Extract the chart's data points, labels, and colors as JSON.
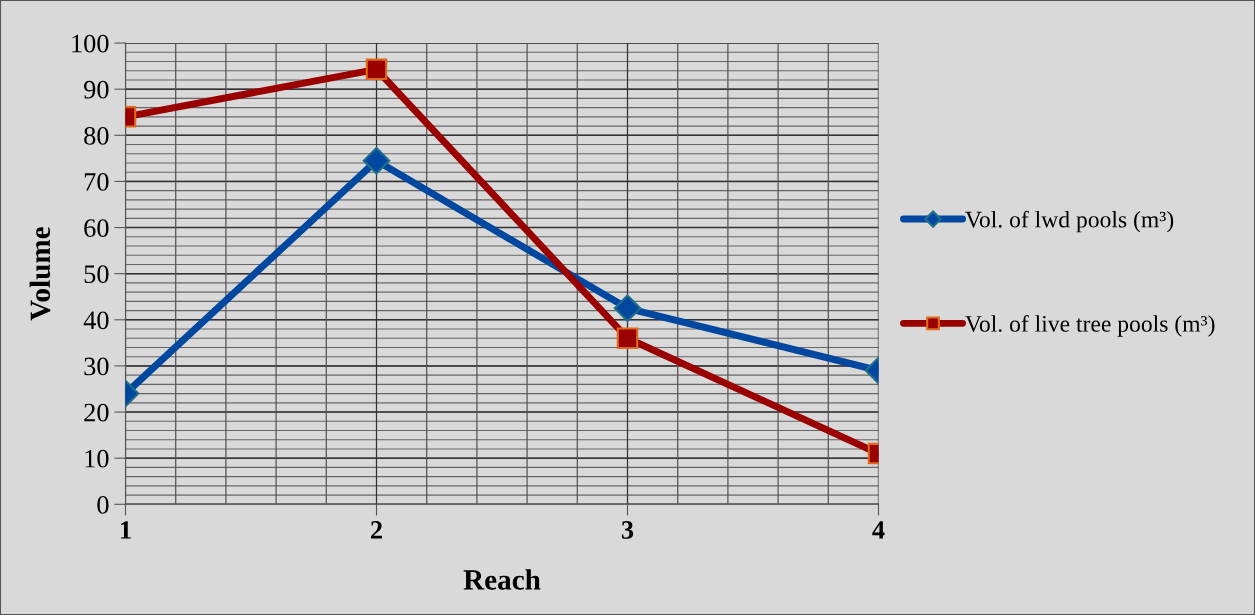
{
  "chart_data": {
    "type": "line",
    "xlabel": "Reach",
    "ylabel": "Volume",
    "categories": [
      "1",
      "2",
      "3",
      "4"
    ],
    "series": [
      {
        "name": "Vol. of lwd pools (m³)",
        "color": "#0047a0",
        "values": [
          24,
          74.5,
          42.5,
          29
        ],
        "marker": "diamond"
      },
      {
        "name": "Vol. of live tree pools (m³)",
        "color": "#9b0000",
        "values": [
          84,
          94.3,
          36,
          11
        ],
        "marker": "square"
      }
    ],
    "ylim": [
      0,
      100
    ],
    "yticks": [
      0,
      10,
      20,
      30,
      40,
      50,
      60,
      70,
      80,
      90,
      100
    ],
    "grid": true,
    "legend": "right",
    "line_style": "solid"
  }
}
